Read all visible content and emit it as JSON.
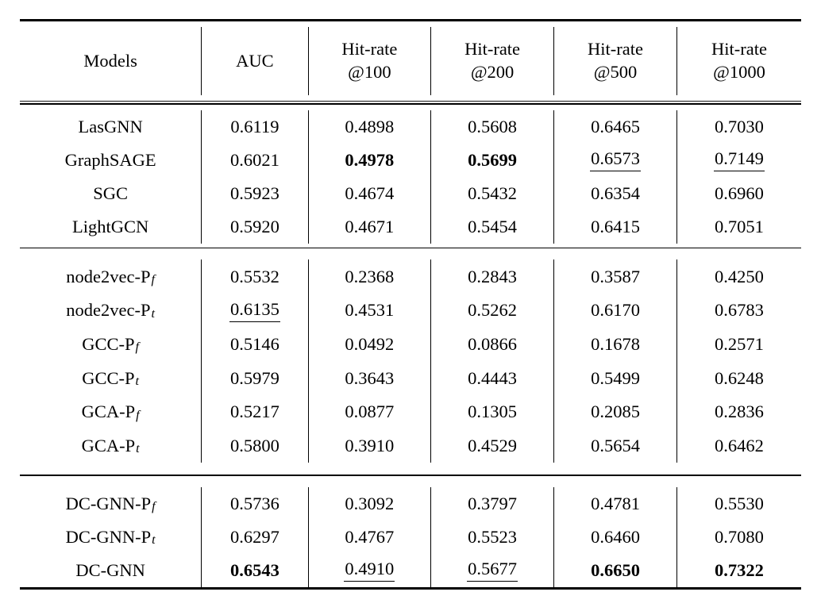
{
  "table": {
    "headers": [
      {
        "line1": "Models",
        "line2": ""
      },
      {
        "line1": "AUC",
        "line2": ""
      },
      {
        "line1": "Hit-rate",
        "line2": "@100"
      },
      {
        "line1": "Hit-rate",
        "line2": "@200"
      },
      {
        "line1": "Hit-rate",
        "line2": "@500"
      },
      {
        "line1": "Hit-rate",
        "line2": "@1000"
      }
    ],
    "groups": [
      {
        "rows": [
          {
            "model": {
              "name": "LasGNN",
              "sub": ""
            },
            "cells": [
              {
                "text": "0.6119",
                "style": ""
              },
              {
                "text": "0.4898",
                "style": ""
              },
              {
                "text": "0.5608",
                "style": ""
              },
              {
                "text": "0.6465",
                "style": ""
              },
              {
                "text": "0.7030",
                "style": ""
              }
            ]
          },
          {
            "model": {
              "name": "GraphSAGE",
              "sub": ""
            },
            "cells": [
              {
                "text": "0.6021",
                "style": ""
              },
              {
                "text": "0.4978",
                "style": "bold"
              },
              {
                "text": "0.5699",
                "style": "bold"
              },
              {
                "text": "0.6573",
                "style": "underline"
              },
              {
                "text": "0.7149",
                "style": "underline"
              }
            ]
          },
          {
            "model": {
              "name": "SGC",
              "sub": ""
            },
            "cells": [
              {
                "text": "0.5923",
                "style": ""
              },
              {
                "text": "0.4674",
                "style": ""
              },
              {
                "text": "0.5432",
                "style": ""
              },
              {
                "text": "0.6354",
                "style": ""
              },
              {
                "text": "0.6960",
                "style": ""
              }
            ]
          },
          {
            "model": {
              "name": "LightGCN",
              "sub": ""
            },
            "cells": [
              {
                "text": "0.5920",
                "style": ""
              },
              {
                "text": "0.4671",
                "style": ""
              },
              {
                "text": "0.5454",
                "style": ""
              },
              {
                "text": "0.6415",
                "style": ""
              },
              {
                "text": "0.7051",
                "style": ""
              }
            ]
          }
        ]
      },
      {
        "rows": [
          {
            "model": {
              "name": "node2vec-P",
              "sub": "f"
            },
            "cells": [
              {
                "text": "0.5532",
                "style": ""
              },
              {
                "text": "0.2368",
                "style": ""
              },
              {
                "text": "0.2843",
                "style": ""
              },
              {
                "text": "0.3587",
                "style": ""
              },
              {
                "text": "0.4250",
                "style": ""
              }
            ]
          },
          {
            "model": {
              "name": "node2vec-P",
              "sub": "t"
            },
            "cells": [
              {
                "text": "0.6135",
                "style": "underline"
              },
              {
                "text": "0.4531",
                "style": ""
              },
              {
                "text": "0.5262",
                "style": ""
              },
              {
                "text": "0.6170",
                "style": ""
              },
              {
                "text": "0.6783",
                "style": ""
              }
            ]
          },
          {
            "model": {
              "name": "GCC-P",
              "sub": "f"
            },
            "cells": [
              {
                "text": "0.5146",
                "style": ""
              },
              {
                "text": "0.0492",
                "style": ""
              },
              {
                "text": "0.0866",
                "style": ""
              },
              {
                "text": "0.1678",
                "style": ""
              },
              {
                "text": "0.2571",
                "style": ""
              }
            ]
          },
          {
            "model": {
              "name": "GCC-P",
              "sub": "t"
            },
            "cells": [
              {
                "text": "0.5979",
                "style": ""
              },
              {
                "text": "0.3643",
                "style": ""
              },
              {
                "text": "0.4443",
                "style": ""
              },
              {
                "text": "0.5499",
                "style": ""
              },
              {
                "text": "0.6248",
                "style": ""
              }
            ]
          },
          {
            "model": {
              "name": "GCA-P",
              "sub": "f"
            },
            "cells": [
              {
                "text": "0.5217",
                "style": ""
              },
              {
                "text": "0.0877",
                "style": ""
              },
              {
                "text": "0.1305",
                "style": ""
              },
              {
                "text": "0.2085",
                "style": ""
              },
              {
                "text": "0.2836",
                "style": ""
              }
            ]
          },
          {
            "model": {
              "name": "GCA-P",
              "sub": "t"
            },
            "cells": [
              {
                "text": "0.5800",
                "style": ""
              },
              {
                "text": "0.3910",
                "style": ""
              },
              {
                "text": "0.4529",
                "style": ""
              },
              {
                "text": "0.5654",
                "style": ""
              },
              {
                "text": "0.6462",
                "style": ""
              }
            ]
          }
        ]
      },
      {
        "rows": [
          {
            "model": {
              "name": "DC-GNN-P",
              "sub": "f"
            },
            "cells": [
              {
                "text": "0.5736",
                "style": ""
              },
              {
                "text": "0.3092",
                "style": ""
              },
              {
                "text": "0.3797",
                "style": ""
              },
              {
                "text": "0.4781",
                "style": ""
              },
              {
                "text": "0.5530",
                "style": ""
              }
            ]
          },
          {
            "model": {
              "name": "DC-GNN-P",
              "sub": "t"
            },
            "cells": [
              {
                "text": "0.6297",
                "style": ""
              },
              {
                "text": "0.4767",
                "style": ""
              },
              {
                "text": "0.5523",
                "style": ""
              },
              {
                "text": "0.6460",
                "style": ""
              },
              {
                "text": "0.7080",
                "style": ""
              }
            ]
          },
          {
            "model": {
              "name": "DC-GNN",
              "sub": ""
            },
            "cells": [
              {
                "text": "0.6543",
                "style": "bold"
              },
              {
                "text": "0.4910",
                "style": "underline"
              },
              {
                "text": "0.5677",
                "style": "underline"
              },
              {
                "text": "0.6650",
                "style": "bold"
              },
              {
                "text": "0.7322",
                "style": "bold"
              }
            ]
          }
        ]
      }
    ]
  },
  "chart_data": {
    "type": "table",
    "columns": [
      "Models",
      "AUC",
      "Hit-rate@100",
      "Hit-rate@200",
      "Hit-rate@500",
      "Hit-rate@1000"
    ],
    "rows": [
      [
        "LasGNN",
        0.6119,
        0.4898,
        0.5608,
        0.6465,
        0.703
      ],
      [
        "GraphSAGE",
        0.6021,
        0.4978,
        0.5699,
        0.6573,
        0.7149
      ],
      [
        "SGC",
        0.5923,
        0.4674,
        0.5432,
        0.6354,
        0.696
      ],
      [
        "LightGCN",
        0.592,
        0.4671,
        0.5454,
        0.6415,
        0.7051
      ],
      [
        "node2vec-P_f",
        0.5532,
        0.2368,
        0.2843,
        0.3587,
        0.425
      ],
      [
        "node2vec-P_t",
        0.6135,
        0.4531,
        0.5262,
        0.617,
        0.6783
      ],
      [
        "GCC-P_f",
        0.5146,
        0.0492,
        0.0866,
        0.1678,
        0.2571
      ],
      [
        "GCC-P_t",
        0.5979,
        0.3643,
        0.4443,
        0.5499,
        0.6248
      ],
      [
        "GCA-P_f",
        0.5217,
        0.0877,
        0.1305,
        0.2085,
        0.2836
      ],
      [
        "GCA-P_t",
        0.58,
        0.391,
        0.4529,
        0.5654,
        0.6462
      ],
      [
        "DC-GNN-P_f",
        0.5736,
        0.3092,
        0.3797,
        0.4781,
        0.553
      ],
      [
        "DC-GNN-P_t",
        0.6297,
        0.4767,
        0.5523,
        0.646,
        0.708
      ],
      [
        "DC-GNN",
        0.6543,
        0.491,
        0.5677,
        0.665,
        0.7322
      ]
    ]
  }
}
